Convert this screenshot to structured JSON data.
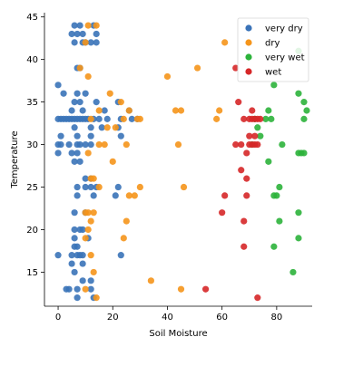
{
  "chart_data": {
    "type": "scatter",
    "xlabel": "Soil Moisture",
    "ylabel": "Temperature",
    "xlim": [
      -5,
      93
    ],
    "ylim": [
      11,
      45.5
    ],
    "xticks": [
      0,
      20,
      40,
      60,
      80
    ],
    "yticks": [
      15,
      20,
      25,
      30,
      35,
      40,
      45
    ],
    "legend_position": "top-right",
    "grid": false,
    "series": [
      {
        "name": "very dry",
        "color": "#3a73b8",
        "points": [
          [
            6,
            44
          ],
          [
            8,
            44
          ],
          [
            13,
            44
          ],
          [
            5,
            43
          ],
          [
            7,
            43
          ],
          [
            9,
            43
          ],
          [
            14,
            43
          ],
          [
            6,
            42
          ],
          [
            9,
            42
          ],
          [
            10,
            42
          ],
          [
            12,
            42
          ],
          [
            14,
            42
          ],
          [
            7,
            39
          ],
          [
            8,
            39
          ],
          [
            0,
            37
          ],
          [
            2,
            36
          ],
          [
            7,
            36
          ],
          [
            10,
            36
          ],
          [
            6,
            35
          ],
          [
            8,
            35
          ],
          [
            14,
            35
          ],
          [
            22,
            35
          ],
          [
            5,
            34
          ],
          [
            9,
            34
          ],
          [
            17,
            34
          ],
          [
            26,
            34
          ],
          [
            0,
            33
          ],
          [
            1,
            33
          ],
          [
            2,
            33
          ],
          [
            3,
            33
          ],
          [
            4,
            33
          ],
          [
            5,
            33
          ],
          [
            6,
            33
          ],
          [
            7,
            33
          ],
          [
            8,
            33
          ],
          [
            9,
            33
          ],
          [
            10,
            33
          ],
          [
            11,
            33
          ],
          [
            13,
            33
          ],
          [
            15,
            33
          ],
          [
            18,
            33
          ],
          [
            23,
            33
          ],
          [
            27,
            33
          ],
          [
            29,
            33
          ],
          [
            6,
            32
          ],
          [
            12,
            32
          ],
          [
            16,
            32
          ],
          [
            22,
            32
          ],
          [
            1,
            31
          ],
          [
            7,
            31
          ],
          [
            12,
            31
          ],
          [
            23,
            31
          ],
          [
            0,
            30
          ],
          [
            1,
            30
          ],
          [
            4,
            30
          ],
          [
            7,
            30
          ],
          [
            8,
            30
          ],
          [
            10,
            30
          ],
          [
            12,
            30
          ],
          [
            0,
            29
          ],
          [
            5,
            29
          ],
          [
            7,
            29
          ],
          [
            6,
            28
          ],
          [
            8,
            28
          ],
          [
            10,
            26
          ],
          [
            12,
            26
          ],
          [
            7,
            25
          ],
          [
            10,
            25
          ],
          [
            12,
            25
          ],
          [
            14,
            25
          ],
          [
            22,
            25
          ],
          [
            7,
            24
          ],
          [
            13,
            24
          ],
          [
            21,
            24
          ],
          [
            6,
            22
          ],
          [
            10,
            22
          ],
          [
            6,
            20
          ],
          [
            8,
            20
          ],
          [
            9,
            20
          ],
          [
            6,
            19
          ],
          [
            11,
            19
          ],
          [
            6,
            18
          ],
          [
            7,
            18
          ],
          [
            5,
            17
          ],
          [
            7,
            17
          ],
          [
            8,
            17
          ],
          [
            9,
            17
          ],
          [
            23,
            17
          ],
          [
            0,
            17
          ],
          [
            5,
            16
          ],
          [
            9,
            16
          ],
          [
            6,
            15
          ],
          [
            9,
            14
          ],
          [
            12,
            14
          ],
          [
            4,
            13
          ],
          [
            3,
            13
          ],
          [
            7,
            13
          ],
          [
            12,
            13
          ],
          [
            7,
            12
          ],
          [
            13,
            12
          ]
        ]
      },
      {
        "name": "dry",
        "color": "#f5951b",
        "points": [
          [
            11,
            44
          ],
          [
            14,
            44
          ],
          [
            10,
            42
          ],
          [
            8,
            39
          ],
          [
            11,
            38
          ],
          [
            40,
            38
          ],
          [
            51,
            39
          ],
          [
            61,
            42
          ],
          [
            19,
            36
          ],
          [
            23,
            35
          ],
          [
            15,
            34
          ],
          [
            26,
            34
          ],
          [
            43,
            34
          ],
          [
            45,
            34
          ],
          [
            59,
            34
          ],
          [
            12,
            33
          ],
          [
            24,
            33
          ],
          [
            29,
            33
          ],
          [
            30,
            33
          ],
          [
            58,
            33
          ],
          [
            18,
            32
          ],
          [
            21,
            32
          ],
          [
            15,
            30
          ],
          [
            17,
            30
          ],
          [
            25,
            30
          ],
          [
            44,
            30
          ],
          [
            11,
            29
          ],
          [
            20,
            28
          ],
          [
            12,
            26
          ],
          [
            13,
            26
          ],
          [
            15,
            25
          ],
          [
            30,
            25
          ],
          [
            46,
            25
          ],
          [
            26,
            24
          ],
          [
            28,
            24
          ],
          [
            10,
            22
          ],
          [
            11,
            22
          ],
          [
            13,
            22
          ],
          [
            12,
            21
          ],
          [
            25,
            21
          ],
          [
            11,
            20
          ],
          [
            10,
            19
          ],
          [
            24,
            19
          ],
          [
            12,
            17
          ],
          [
            13,
            15
          ],
          [
            34,
            14
          ],
          [
            10,
            13
          ],
          [
            45,
            13
          ],
          [
            14,
            12
          ]
        ]
      },
      {
        "name": "very wet",
        "color": "#2cb33b",
        "points": [
          [
            88,
            41
          ],
          [
            79,
            37
          ],
          [
            88,
            36
          ],
          [
            90,
            35
          ],
          [
            77,
            34
          ],
          [
            91,
            34
          ],
          [
            72,
            33
          ],
          [
            76,
            33
          ],
          [
            78,
            33
          ],
          [
            90,
            33
          ],
          [
            73,
            32
          ],
          [
            74,
            31
          ],
          [
            71,
            30
          ],
          [
            82,
            30
          ],
          [
            88,
            29
          ],
          [
            89,
            29
          ],
          [
            90,
            29
          ],
          [
            77,
            28
          ],
          [
            81,
            25
          ],
          [
            79,
            24
          ],
          [
            80,
            24
          ],
          [
            88,
            22
          ],
          [
            81,
            21
          ],
          [
            88,
            19
          ],
          [
            79,
            18
          ],
          [
            86,
            15
          ]
        ]
      },
      {
        "name": "wet",
        "color": "#d62728",
        "points": [
          [
            65,
            39
          ],
          [
            66,
            35
          ],
          [
            71,
            34
          ],
          [
            68,
            33
          ],
          [
            70,
            33
          ],
          [
            71,
            33
          ],
          [
            72,
            33
          ],
          [
            73,
            33
          ],
          [
            74,
            33
          ],
          [
            70,
            31
          ],
          [
            72,
            31
          ],
          [
            65,
            30
          ],
          [
            67,
            30
          ],
          [
            70,
            30
          ],
          [
            71,
            30
          ],
          [
            72,
            30
          ],
          [
            73,
            30
          ],
          [
            69,
            29
          ],
          [
            67,
            27
          ],
          [
            69,
            26
          ],
          [
            61,
            24
          ],
          [
            69,
            24
          ],
          [
            60,
            22
          ],
          [
            68,
            21
          ],
          [
            68,
            18
          ],
          [
            54,
            13
          ],
          [
            73,
            12
          ]
        ]
      }
    ]
  }
}
